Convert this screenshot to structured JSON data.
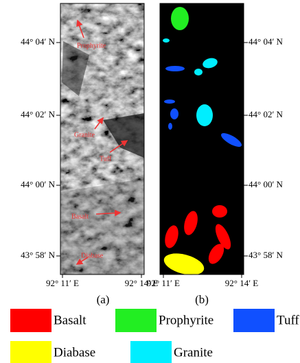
{
  "panels": [
    {
      "label": "(a)",
      "annotations": [
        "Prophyrite",
        "Granite",
        "Tuff",
        "Basalt",
        "Diabase"
      ]
    },
    {
      "label": "(b)"
    }
  ],
  "y_axis_labels": [
    "44° 04′ N",
    "44° 02′ N",
    "44° 00′ N",
    "43° 58′ N"
  ],
  "x_axis_labels": [
    "92° 11′ E",
    "92° 14′ E"
  ],
  "legend": [
    {
      "name": "Basalt",
      "color": "#ff0000"
    },
    {
      "name": "Prophyrite",
      "color": "#22ee22"
    },
    {
      "name": "Tuff",
      "color": "#1050ff"
    },
    {
      "name": "Diabase",
      "color": "#ffff00"
    },
    {
      "name": "Granite",
      "color": "#00eeff"
    }
  ]
}
